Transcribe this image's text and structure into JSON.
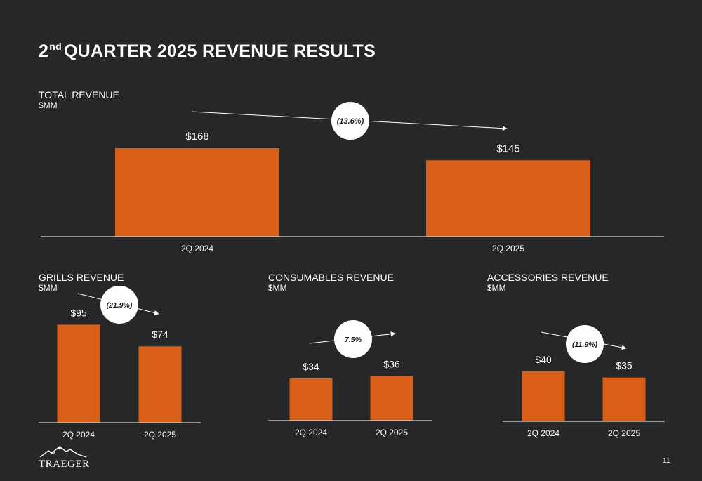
{
  "page": {
    "title_prefix": "2",
    "title_superscript": "nd",
    "title_rest": "QUARTER 2025 REVENUE RESULTS",
    "page_number": "11",
    "logo_text": "TRAEGER"
  },
  "chart_data": [
    {
      "id": "total",
      "type": "bar",
      "title": "TOTAL REVENUE",
      "unit": "$MM",
      "categories": [
        "2Q 2024",
        "2Q 2025"
      ],
      "values": [
        168,
        145
      ],
      "labels": [
        "$168",
        "$145"
      ],
      "change": "(13.6%)",
      "color": "#D95E16"
    },
    {
      "id": "grills",
      "type": "bar",
      "title": "GRILLS REVENUE",
      "unit": "$MM",
      "categories": [
        "2Q 2024",
        "2Q 2025"
      ],
      "values": [
        95,
        74
      ],
      "labels": [
        "$95",
        "$74"
      ],
      "change": "(21.9%)",
      "color": "#D95E16"
    },
    {
      "id": "consumables",
      "type": "bar",
      "title": "CONSUMABLES REVENUE",
      "unit": "$MM",
      "categories": [
        "2Q 2024",
        "2Q 2025"
      ],
      "values": [
        34,
        36
      ],
      "labels": [
        "$34",
        "$36"
      ],
      "change": "7.5%",
      "color": "#D95E16"
    },
    {
      "id": "accessories",
      "type": "bar",
      "title": "ACCESSORIES REVENUE",
      "unit": "$MM",
      "categories": [
        "2Q 2024",
        "2Q 2025"
      ],
      "values": [
        40,
        35
      ],
      "labels": [
        "$40",
        "$35"
      ],
      "change": "(11.9%)",
      "color": "#D95E16"
    }
  ]
}
